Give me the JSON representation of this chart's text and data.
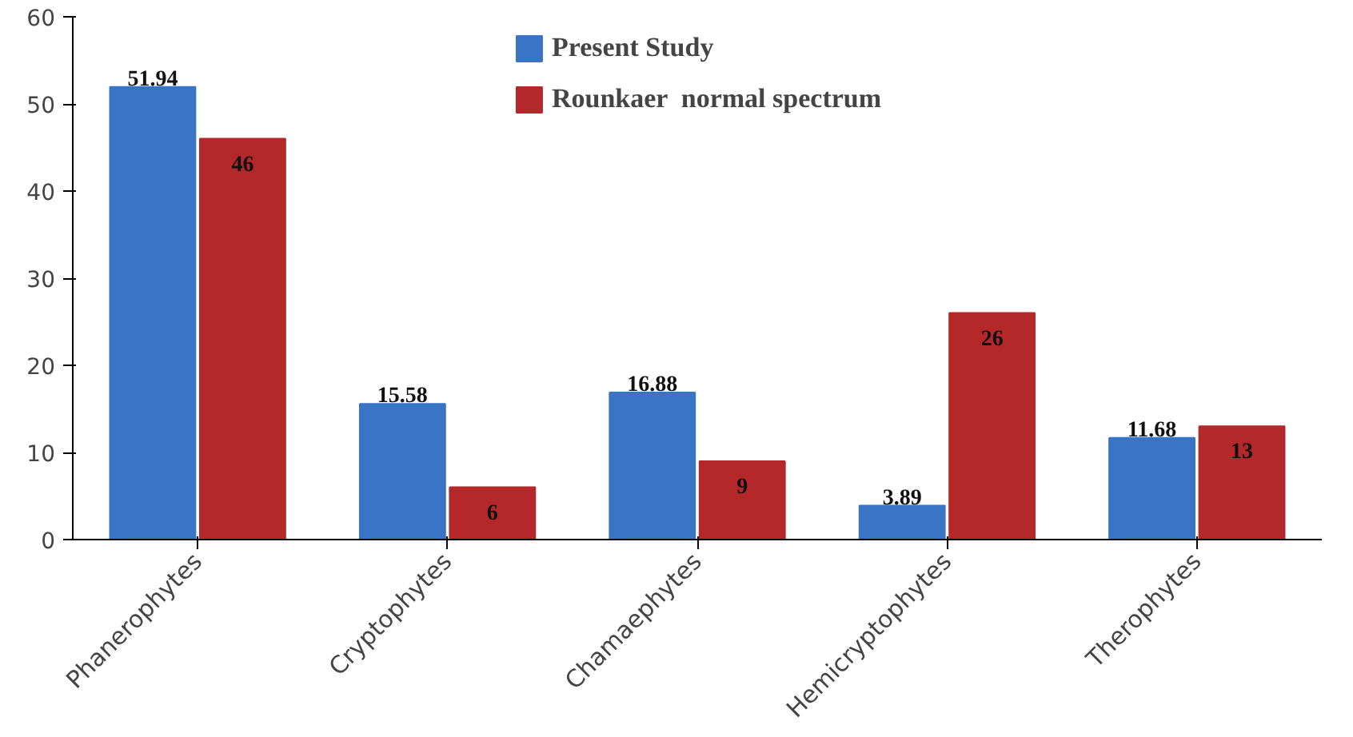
{
  "chart_data": {
    "type": "bar",
    "categories": [
      "Phanerophytes",
      "Cryptophytes",
      "Chamaephytes",
      "Hemicryptophytes",
      "Therophytes"
    ],
    "series": [
      {
        "name": "Present Study",
        "color": "#3a74c4",
        "values": [
          51.94,
          15.58,
          16.88,
          3.89,
          11.68
        ]
      },
      {
        "name": "Rounkaer  normal spectrum",
        "color": "#b5282a",
        "values": [
          46,
          6,
          9,
          26,
          13
        ]
      }
    ],
    "ylim": [
      0,
      60
    ],
    "yticks": [
      0,
      10,
      20,
      30,
      40,
      50,
      60
    ],
    "grid": false,
    "legend": "top",
    "data_labels": true
  }
}
